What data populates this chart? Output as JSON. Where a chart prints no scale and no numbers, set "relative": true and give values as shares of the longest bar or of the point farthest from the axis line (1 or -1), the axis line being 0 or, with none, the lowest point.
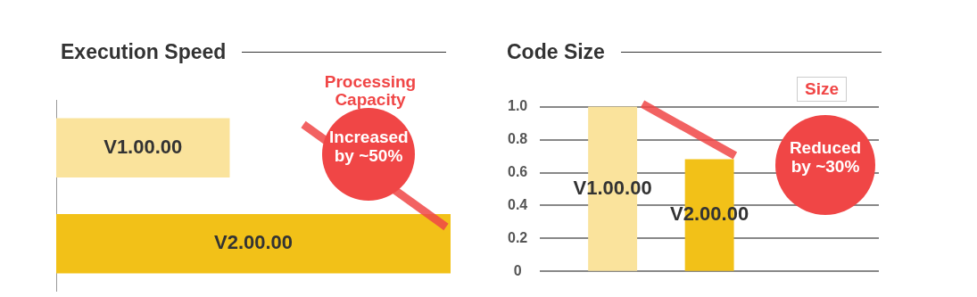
{
  "chart_data": [
    {
      "type": "bar",
      "title": "Execution Speed",
      "orientation": "horizontal",
      "relative": true,
      "categories": [
        "V1.00.00",
        "V2.00.00"
      ],
      "values": [
        0.44,
        1
      ],
      "colors": [
        "#fae39c",
        "#f2c118"
      ],
      "annotations": [
        "Processing Capacity",
        "Increased by ~50%"
      ]
    },
    {
      "type": "bar",
      "title": "Code Size",
      "categories": [
        "V1.00.00",
        "V2.00.00"
      ],
      "values": [
        1.0,
        0.68
      ],
      "colors": [
        "#fae39c",
        "#f2c118"
      ],
      "ylim": [
        0,
        1.0
      ],
      "yticks": [
        0,
        0.2,
        0.4,
        0.6,
        0.8,
        {
          "value": 1.0,
          "label": "1.0"
        }
      ],
      "grid": "y",
      "annotations": [
        "Size",
        "Reduced by ~30%"
      ]
    }
  ]
}
